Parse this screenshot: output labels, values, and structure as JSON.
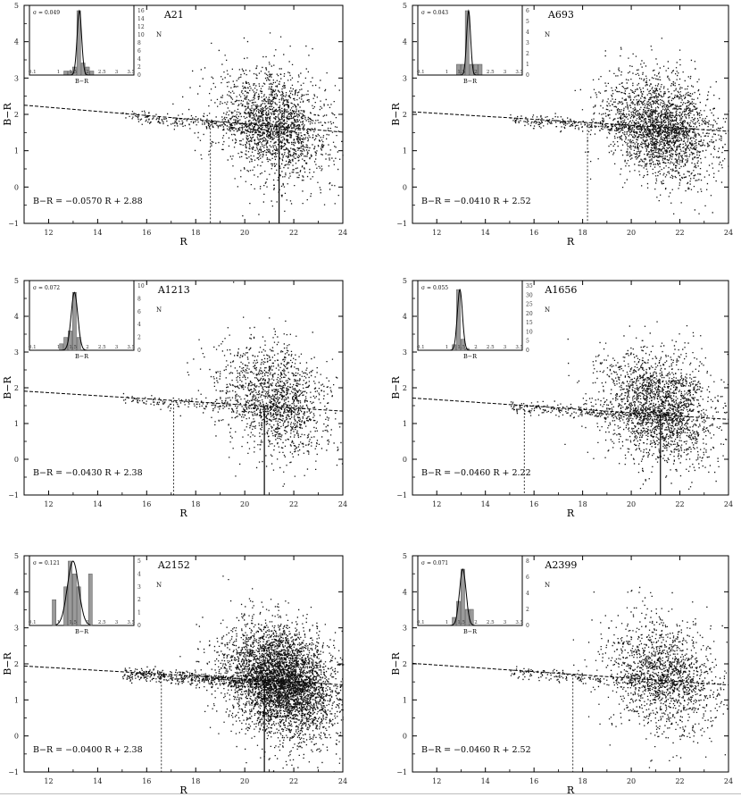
{
  "chart_data": [
    {
      "type": "scatter",
      "title": "A21",
      "xlabel": "R",
      "ylabel": "B−R",
      "xlim": [
        11,
        24
      ],
      "ylim": [
        -1,
        5
      ],
      "xticks": [
        "12",
        "14",
        "16",
        "18",
        "20",
        "22",
        "24"
      ],
      "yticks": [
        "−1",
        "0",
        "1",
        "2",
        "3",
        "4",
        "5"
      ],
      "relation": {
        "slope": -0.057,
        "intercept": 2.88
      },
      "annotation": "B−R = −0.0570 R + 2.88",
      "cutoffs": [
        18.6,
        21.4
      ],
      "scatter_summary": {
        "center_R": 21.2,
        "center_BR": 1.7,
        "n_points": 2200
      },
      "inset": {
        "label": "σ = 0.049",
        "xlabel": "B−R",
        "ylabel": "N",
        "xticks": [
          "0.1",
          "1",
          "1.5",
          "2",
          "2.5",
          "3",
          "3.5"
        ],
        "yticks": [
          "0",
          "2",
          "4",
          "6",
          "8",
          "10",
          "12",
          "14",
          "16"
        ],
        "xlim": [
          0,
          3.6
        ],
        "ymax": 16,
        "bins_x": [
          1.25,
          1.4,
          1.55,
          1.7,
          1.85,
          2.0,
          2.15
        ],
        "bins_n": [
          1,
          1,
          2,
          16,
          3,
          2,
          1
        ],
        "peak": 1.72
      }
    },
    {
      "type": "scatter",
      "title": "A693",
      "xlabel": "R",
      "ylabel": "B−R",
      "xlim": [
        11,
        24
      ],
      "ylim": [
        -1,
        5
      ],
      "xticks": [
        "12",
        "14",
        "16",
        "18",
        "20",
        "22",
        "24"
      ],
      "yticks": [
        "−1",
        "0",
        "1",
        "2",
        "3",
        "4",
        "5"
      ],
      "relation": {
        "slope": -0.041,
        "intercept": 2.52
      },
      "annotation": "B−R = −0.0410 R + 2.52",
      "cutoffs": [
        18.2
      ],
      "scatter_summary": {
        "center_R": 21.3,
        "center_BR": 1.6,
        "n_points": 2600
      },
      "inset": {
        "label": "σ = 0.043",
        "xlabel": "B−R",
        "ylabel": "N",
        "xticks": [
          "0.1",
          "1",
          "1.5",
          "2",
          "2.5",
          "3",
          "3.5"
        ],
        "yticks": [
          "0",
          "1",
          "2",
          "3",
          "4",
          "5",
          "6"
        ],
        "xlim": [
          0,
          3.6
        ],
        "ymax": 6,
        "bins_x": [
          1.4,
          1.55,
          1.7,
          1.85,
          2.0,
          2.15
        ],
        "bins_n": [
          1,
          1,
          6,
          1,
          1,
          1
        ],
        "peak": 1.75
      }
    },
    {
      "type": "scatter",
      "title": "A1213",
      "xlabel": "R",
      "ylabel": "B−R",
      "xlim": [
        11,
        24
      ],
      "ylim": [
        -1,
        5
      ],
      "xticks": [
        "12",
        "14",
        "16",
        "18",
        "20",
        "22",
        "24"
      ],
      "yticks": [
        "−1",
        "0",
        "1",
        "2",
        "3",
        "4",
        "5"
      ],
      "relation": {
        "slope": -0.043,
        "intercept": 2.38
      },
      "annotation": "B−R = −0.0430 R + 2.38",
      "cutoffs": [
        17.1,
        20.8
      ],
      "scatter_summary": {
        "center_R": 21.2,
        "center_BR": 1.7,
        "n_points": 1700
      },
      "inset": {
        "label": "σ = 0.072",
        "xlabel": "B−R",
        "ylabel": "N",
        "xticks": [
          "0.1",
          "1",
          "1.5",
          "2",
          "2.5",
          "3",
          "3.5"
        ],
        "yticks": [
          "0",
          "2",
          "4",
          "6",
          "8",
          "10"
        ],
        "xlim": [
          0,
          3.6
        ],
        "ymax": 10,
        "bins_x": [
          1.1,
          1.25,
          1.4,
          1.55,
          1.7
        ],
        "bins_n": [
          1,
          2,
          3,
          9,
          2
        ],
        "peak": 1.55
      }
    },
    {
      "type": "scatter",
      "title": "A1656",
      "xlabel": "R",
      "ylabel": "B−R",
      "xlim": [
        11,
        24
      ],
      "ylim": [
        -1,
        5
      ],
      "xticks": [
        "12",
        "14",
        "16",
        "18",
        "20",
        "22",
        "24"
      ],
      "yticks": [
        "−1",
        "0",
        "1",
        "2",
        "3",
        "4",
        "5"
      ],
      "relation": {
        "slope": -0.046,
        "intercept": 2.22
      },
      "annotation": "B−R = −0.0460 R + 2.22",
      "cutoffs": [
        15.6,
        21.2
      ],
      "scatter_summary": {
        "center_R": 21.1,
        "center_BR": 1.5,
        "n_points": 2400
      },
      "inset": {
        "label": "σ = 0.055",
        "xlabel": "B−R",
        "ylabel": "N",
        "xticks": [
          "0.1",
          "1",
          "1.5",
          "2",
          "2.5",
          "3",
          "3.5"
        ],
        "yticks": [
          "0",
          "5",
          "10",
          "15",
          "20",
          "25",
          "30",
          "35"
        ],
        "xlim": [
          0,
          3.6
        ],
        "ymax": 35,
        "bins_x": [
          1.25,
          1.4,
          1.55,
          1.7
        ],
        "bins_n": [
          3,
          33,
          6,
          1
        ],
        "peak": 1.45
      }
    },
    {
      "type": "scatter",
      "title": "A2152",
      "xlabel": "R",
      "ylabel": "B−R",
      "xlim": [
        11,
        24
      ],
      "ylim": [
        -1,
        5
      ],
      "xticks": [
        "12",
        "14",
        "16",
        "18",
        "20",
        "22",
        "24"
      ],
      "yticks": [
        "−1",
        "0",
        "1",
        "2",
        "3",
        "4",
        "5"
      ],
      "relation": {
        "slope": -0.04,
        "intercept": 2.38
      },
      "annotation": "B−R = −0.0400 R + 2.38",
      "cutoffs": [
        16.6,
        20.8
      ],
      "scatter_summary": {
        "center_R": 21.5,
        "center_BR": 1.5,
        "n_points": 5200
      },
      "inset": {
        "label": "σ = 0.121",
        "xlabel": "B−R",
        "ylabel": "N",
        "xticks": [
          "0.1",
          "1",
          "1.5",
          "2",
          "2.5",
          "3",
          "3.5"
        ],
        "yticks": [
          "0",
          "1",
          "2",
          "3",
          "4",
          "5"
        ],
        "xlim": [
          0,
          3.6
        ],
        "ymax": 5,
        "bins_x": [
          0.85,
          1.25,
          1.4,
          1.55,
          1.7,
          2.1
        ],
        "bins_n": [
          2,
          3,
          5,
          4,
          3,
          4
        ],
        "peak": 1.5
      }
    },
    {
      "type": "scatter",
      "title": "A2399",
      "xlabel": "R",
      "ylabel": "B−R",
      "xlim": [
        11,
        24
      ],
      "ylim": [
        -1,
        5
      ],
      "xticks": [
        "12",
        "14",
        "16",
        "18",
        "20",
        "22",
        "24"
      ],
      "yticks": [
        "−1",
        "0",
        "1",
        "2",
        "3",
        "4",
        "5"
      ],
      "relation": {
        "slope": -0.046,
        "intercept": 2.52
      },
      "annotation": "B−R = −0.0460 R + 2.52",
      "cutoffs": [
        17.6
      ],
      "scatter_summary": {
        "center_R": 21.3,
        "center_BR": 1.7,
        "n_points": 1800
      },
      "inset": {
        "label": "σ = 0.071",
        "xlabel": "B−R",
        "ylabel": "N",
        "xticks": [
          "0.1",
          "1",
          "1.5",
          "2",
          "2.5",
          "3",
          "3.5"
        ],
        "yticks": [
          "0",
          "2",
          "4",
          "6",
          "8"
        ],
        "xlim": [
          0,
          3.6
        ],
        "ymax": 8,
        "bins_x": [
          1.25,
          1.4,
          1.55,
          1.7,
          1.85
        ],
        "bins_n": [
          1,
          3,
          7,
          2,
          2
        ],
        "peak": 1.55
      }
    }
  ]
}
